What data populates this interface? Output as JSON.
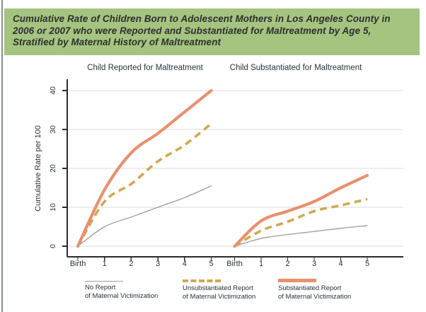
{
  "header": {
    "lines": [
      "Cumulative Rate of Children Born to Adolescent Mothers in Los Angeles County in",
      "2006 or 2007 who were Reported and Substantiated for Maltreatment by Age 5,",
      "Stratified by Maternal History of Maltreatment"
    ],
    "bg_color": "#a5c480"
  },
  "shared": {
    "ylabel": "Cumulative Rate per 100",
    "y_ticks": [
      "0",
      "10",
      "20",
      "30",
      "40"
    ],
    "x_ticks": [
      "Birth",
      "1",
      "2",
      "3",
      "4",
      "5"
    ]
  },
  "legend": [
    {
      "name": "No Report of Maternal Victimization",
      "line1": "No Report",
      "line2": "of Maternal Victimization",
      "style": "solid-thin",
      "color": "#9a9a9a"
    },
    {
      "name": "Unsubstantiated Report of Maternal Victimization",
      "line1": "Unsubstantiated Report",
      "line2": "of Maternal Victimization",
      "style": "dashed",
      "color": "#cfa952"
    },
    {
      "name": "Substantiated Report of Maternal Victimization",
      "line1": "Substantiated Report",
      "line2": "of Maternal Victimization",
      "style": "solid-thick",
      "color": "#e8906f"
    }
  ],
  "chart_data": [
    {
      "type": "line",
      "title": "Child Reported for Maltreatment",
      "categories": [
        "Birth",
        "1",
        "2",
        "3",
        "4",
        "5"
      ],
      "xlabel": "",
      "ylabel": "Cumulative Rate per 100",
      "ylim": [
        0,
        40
      ],
      "grid": true,
      "series": [
        {
          "name": "No Report of Maternal Victimization",
          "values": [
            0,
            5,
            7.5,
            10,
            12.5,
            15.5
          ],
          "color": "#9a9a9a",
          "style": "solid-thin"
        },
        {
          "name": "Unsubstantiated Report of Maternal Victimization",
          "values": [
            0,
            11.5,
            16,
            21.8,
            26,
            31.5
          ],
          "color": "#cfa952",
          "style": "dashed"
        },
        {
          "name": "Substantiated Report of Maternal Victimization",
          "values": [
            0,
            14.5,
            24,
            29,
            34.5,
            40
          ],
          "color": "#e8906f",
          "style": "solid-thick"
        }
      ]
    },
    {
      "type": "line",
      "title": "Child Substantiated for Maltreatment",
      "categories": [
        "Birth",
        "1",
        "2",
        "3",
        "4",
        "5"
      ],
      "xlabel": "",
      "ylabel": "Cumulative Rate per 100",
      "ylim": [
        0,
        40
      ],
      "grid": true,
      "series": [
        {
          "name": "No Report of Maternal Victimization",
          "values": [
            0,
            2,
            3,
            3.8,
            4.6,
            5.3
          ],
          "color": "#9a9a9a",
          "style": "solid-thin"
        },
        {
          "name": "Unsubstantiated Report of Maternal Victimization",
          "values": [
            0,
            4,
            6.3,
            9,
            10.5,
            12.1
          ],
          "color": "#cfa952",
          "style": "dashed"
        },
        {
          "name": "Substantiated Report of Maternal Victimization",
          "values": [
            0,
            6.5,
            9,
            11.5,
            15,
            18.2
          ],
          "color": "#e8906f",
          "style": "solid-thick"
        }
      ]
    }
  ]
}
